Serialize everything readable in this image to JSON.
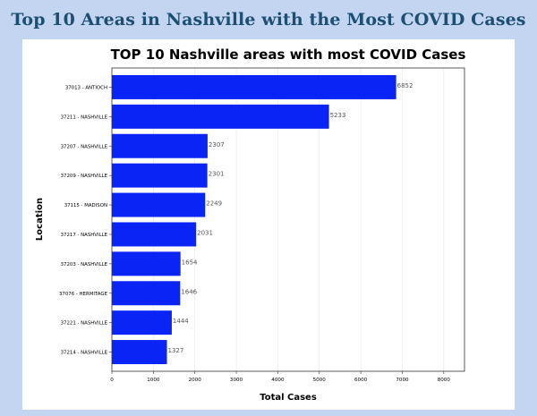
{
  "header": {
    "title": "Top 10 Areas in Nashville with the Most COVID Cases"
  },
  "colors": {
    "bar": "#0a24f5",
    "background": "#c4d5f1",
    "header_text": "#1d4f72",
    "grid": "#e6e6e6"
  },
  "chart_data": {
    "type": "bar",
    "orientation": "horizontal",
    "title": "TOP 10 Nashville areas with most COVID Cases",
    "xlabel": "Total Cases",
    "ylabel": "Location",
    "categories": [
      "37013 - ANTIOCH",
      "37211 - NASHVILLE",
      "37207 - NASHVILLE",
      "37209 - NASHVILLE",
      "37115 - MADISON",
      "37217 - NASHVILLE",
      "37203 - NASHVILLE",
      "37076 - HERMITAGE",
      "37221 - NASHVILLE",
      "37214 - NASHVILLE"
    ],
    "values": [
      6852,
      5233,
      2307,
      2301,
      2249,
      2031,
      1654,
      1646,
      1444,
      1327
    ],
    "xlim": [
      0,
      8500
    ],
    "xticks": [
      0,
      1000,
      2000,
      3000,
      4000,
      5000,
      6000,
      7000,
      8000
    ],
    "grid": "vertical",
    "data_labels": true
  }
}
